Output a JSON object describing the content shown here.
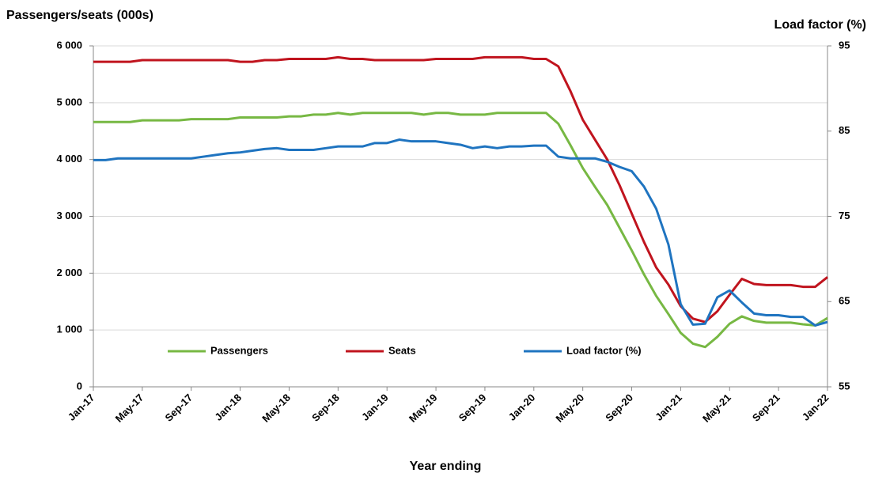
{
  "chart_data": {
    "type": "line",
    "y_label": "Passengers/seats (000s)",
    "y2_label": "Load factor (%)",
    "x_label": "Year ending",
    "categories": [
      "Jan-17",
      null,
      null,
      null,
      "May-17",
      null,
      null,
      null,
      "Sep-17",
      null,
      null,
      null,
      "Jan-18",
      null,
      null,
      null,
      "May-18",
      null,
      null,
      null,
      "Sep-18",
      null,
      null,
      null,
      "Jan-19",
      null,
      null,
      null,
      "May-19",
      null,
      null,
      null,
      "Sep-19",
      null,
      null,
      null,
      "Jan-20",
      null,
      null,
      null,
      "May-20",
      null,
      null,
      null,
      "Sep-20",
      null,
      null,
      null,
      "Jan-21",
      null,
      null,
      null,
      "May-21",
      null,
      null,
      null,
      "Sep-21",
      null,
      null,
      null,
      "Jan-22"
    ],
    "series": [
      {
        "name": "Passengers",
        "color": "#77b843",
        "axis": "y",
        "values": [
          4660,
          4660,
          4660,
          4660,
          4690,
          4690,
          4690,
          4690,
          4710,
          4710,
          4710,
          4710,
          4740,
          4740,
          4740,
          4740,
          4760,
          4760,
          4790,
          4790,
          4820,
          4790,
          4820,
          4820,
          4820,
          4820,
          4820,
          4790,
          4820,
          4820,
          4790,
          4790,
          4790,
          4820,
          4820,
          4820,
          4820,
          4820,
          4630,
          4250,
          3850,
          3520,
          3200,
          2800,
          2400,
          1980,
          1600,
          1280,
          950,
          760,
          700,
          880,
          1110,
          1240,
          1160,
          1130,
          1130,
          1130,
          1100,
          1080,
          1210
        ]
      },
      {
        "name": "Seats",
        "color": "#c0141e",
        "axis": "y",
        "values": [
          5720,
          5720,
          5720,
          5720,
          5750,
          5750,
          5750,
          5750,
          5750,
          5750,
          5750,
          5750,
          5720,
          5720,
          5750,
          5750,
          5770,
          5770,
          5770,
          5770,
          5800,
          5770,
          5770,
          5750,
          5750,
          5750,
          5750,
          5750,
          5770,
          5770,
          5770,
          5770,
          5800,
          5800,
          5800,
          5800,
          5770,
          5770,
          5640,
          5200,
          4700,
          4350,
          4000,
          3550,
          3050,
          2550,
          2100,
          1800,
          1420,
          1200,
          1140,
          1330,
          1620,
          1900,
          1810,
          1790,
          1790,
          1790,
          1760,
          1760,
          1930
        ]
      },
      {
        "name": "Load factor (%)",
        "color": "#1f74c0",
        "axis": "y2",
        "values": [
          81.6,
          81.6,
          81.8,
          81.8,
          81.8,
          81.8,
          81.8,
          81.8,
          81.8,
          82.0,
          82.2,
          82.4,
          82.5,
          82.7,
          82.9,
          83.0,
          82.8,
          82.8,
          82.8,
          83.0,
          83.2,
          83.2,
          83.2,
          83.6,
          83.6,
          84.0,
          83.8,
          83.8,
          83.8,
          83.6,
          83.4,
          83.0,
          83.2,
          83.0,
          83.2,
          83.2,
          83.3,
          83.3,
          82.0,
          81.8,
          81.8,
          81.8,
          81.4,
          80.8,
          80.3,
          78.5,
          75.9,
          71.7,
          64.7,
          62.3,
          62.4,
          65.5,
          66.3,
          64.9,
          63.6,
          63.4,
          63.4,
          63.2,
          63.2,
          62.2,
          62.6
        ]
      }
    ],
    "ylim": [
      0,
      6000
    ],
    "yticks": [
      0,
      {
        "value": 1000,
        "label": "1 000"
      },
      {
        "value": 2000,
        "label": "2 000"
      },
      {
        "value": 3000,
        "label": "3 000"
      },
      {
        "value": 4000,
        "label": "4 000"
      },
      {
        "value": 5000,
        "label": "5 000"
      },
      {
        "value": 6000,
        "label": "6 000"
      }
    ],
    "y2lim": [
      55,
      95
    ],
    "y2ticks": [
      55,
      65,
      75,
      85,
      95
    ],
    "grid": true,
    "legend": "lower center"
  }
}
